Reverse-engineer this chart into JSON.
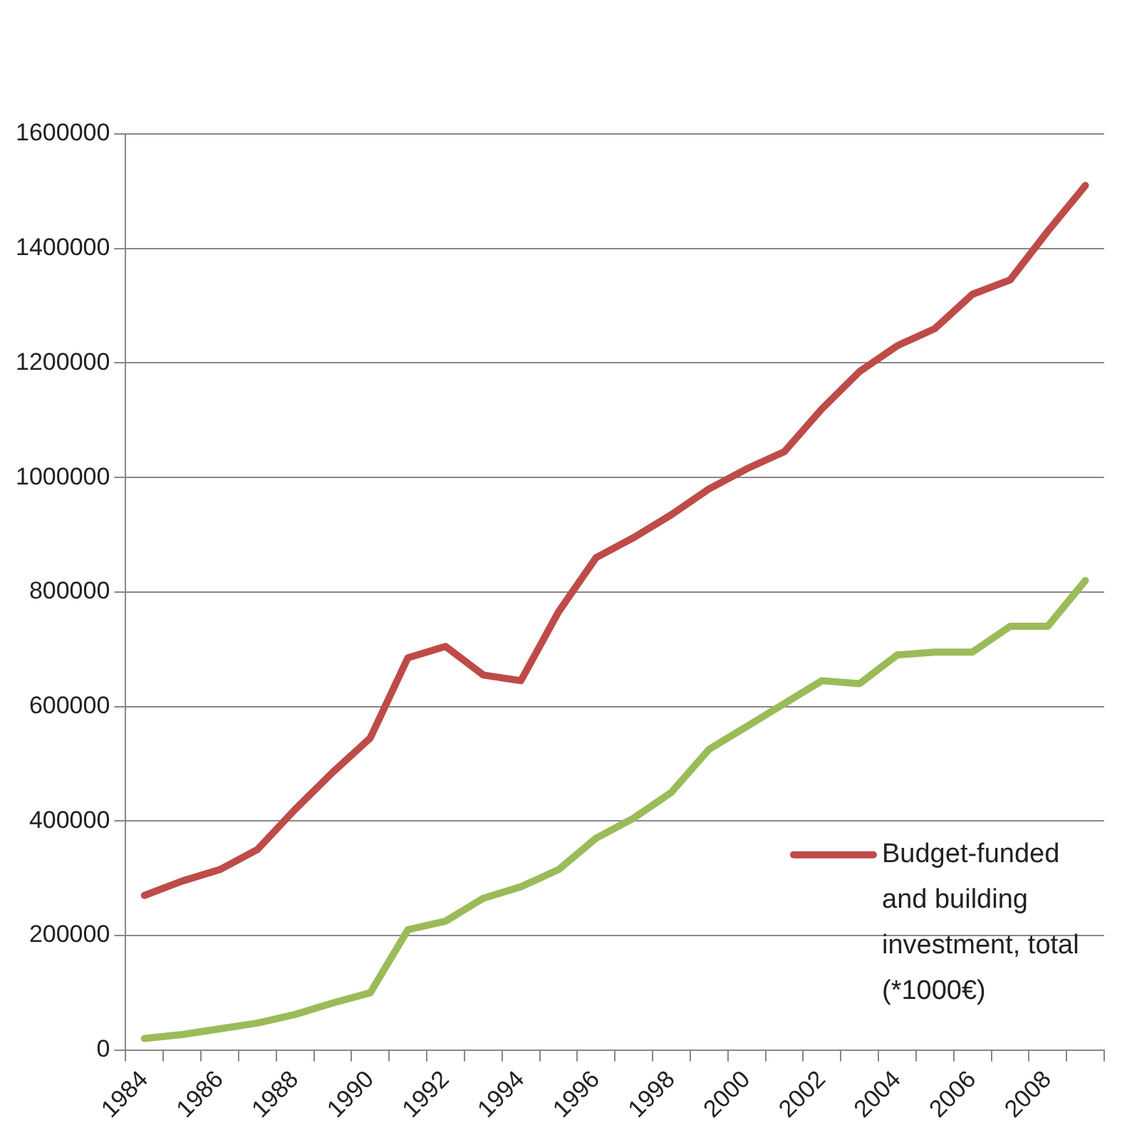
{
  "chart_data": {
    "type": "line",
    "categories": [
      "1984",
      null,
      "1986",
      null,
      "1988",
      null,
      "1990",
      null,
      "1992",
      null,
      "1994",
      null,
      "1996",
      null,
      "1998",
      null,
      "2000",
      null,
      "2002",
      null,
      "2004",
      null,
      "2006",
      null,
      "2008",
      null
    ],
    "series": [
      {
        "name": "Budget-funded and building investment, total (*1000€)",
        "color": "#be4b48",
        "values": [
          270000,
          295000,
          315000,
          350000,
          420000,
          485000,
          545000,
          685000,
          705000,
          655000,
          645000,
          765000,
          860000,
          895000,
          935000,
          980000,
          1015000,
          1045000,
          1120000,
          1185000,
          1230000,
          1260000,
          1320000,
          1345000,
          1430000,
          1510000
        ]
      },
      {
        "color": "#9bbb59",
        "values": [
          20000,
          27000,
          37000,
          47000,
          62000,
          82000,
          100000,
          210000,
          225000,
          265000,
          285000,
          315000,
          370000,
          405000,
          450000,
          525000,
          565000,
          605000,
          645000,
          640000,
          690000,
          695000,
          695000,
          740000,
          740000,
          820000
        ]
      }
    ],
    "ylim": [
      0,
      1600000
    ],
    "yticks": [
      0,
      200000,
      400000,
      600000,
      800000,
      1000000,
      1200000,
      1400000,
      1600000
    ],
    "grid": "y",
    "legend": "bottom right",
    "marker": "none",
    "line_style": "solid"
  }
}
